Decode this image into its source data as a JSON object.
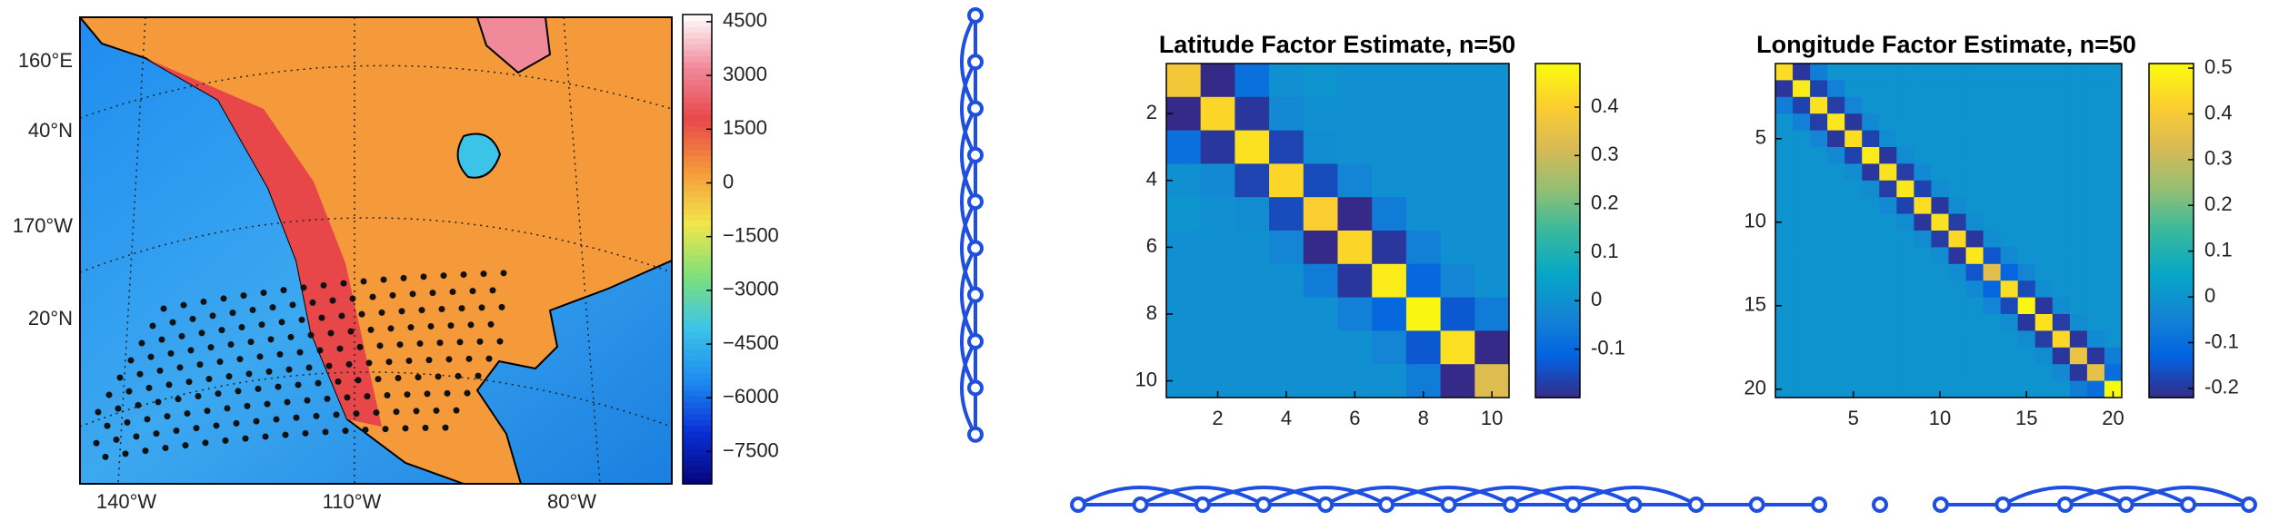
{
  "chart_data": [
    {
      "type": "map",
      "x_labels": [
        "140°W",
        "110°W",
        "80°W"
      ],
      "y_labels": [
        "160°E",
        "40°N",
        "170°W",
        "20°N"
      ],
      "clim": [
        -8400,
        4700
      ],
      "cticks": [
        4500,
        3000,
        1500,
        0,
        {
          "value": -1500,
          "label": "−1500"
        },
        {
          "value": -3000,
          "label": "−3000"
        },
        {
          "value": -4500,
          "label": "−4500"
        },
        {
          "value": -6000,
          "label": "−6000"
        },
        {
          "value": -7500,
          "label": "−7500"
        }
      ],
      "colormap": [
        "#05057a",
        "#0a2fd6",
        "#1f8cf0",
        "#3cc4e8",
        "#7ee07a",
        "#f2e64a",
        "#f59a3a",
        "#e8474a",
        "#f08a9a",
        "#ffffff"
      ]
    },
    {
      "type": "heatmap",
      "title": "Latitude Factor Estimate, n=50",
      "xlim": [
        0.5,
        10.5
      ],
      "ylim": [
        0.5,
        10.5
      ],
      "y_reversed": true,
      "xticks": [
        2,
        4,
        6,
        8,
        10
      ],
      "yticks": [
        2,
        4,
        6,
        8,
        10
      ],
      "clim": [
        -0.2,
        0.49
      ],
      "cticks": [
        0.4,
        0.3,
        0.2,
        0.1,
        0,
        -0.1
      ],
      "colormap": [
        "#352a87",
        "#0363e1",
        "#1485d4",
        "#06a7c6",
        "#38b99e",
        "#92bf73",
        "#d9ba56",
        "#fcce2e",
        "#f9fb0e"
      ],
      "values": [
        [
          0.38,
          -0.2,
          -0.08,
          0,
          0.01,
          0,
          0,
          0,
          0,
          0
        ],
        [
          -0.2,
          0.42,
          -0.18,
          -0.02,
          0,
          0,
          0,
          0,
          0,
          0
        ],
        [
          -0.08,
          -0.18,
          0.44,
          -0.16,
          -0.01,
          0,
          0,
          0,
          0,
          0
        ],
        [
          0,
          -0.02,
          -0.16,
          0.42,
          -0.15,
          -0.03,
          0,
          0,
          0,
          0
        ],
        [
          0.01,
          0,
          -0.01,
          -0.15,
          0.4,
          -0.2,
          -0.05,
          0,
          0,
          0
        ],
        [
          0,
          0,
          0,
          -0.03,
          -0.2,
          0.42,
          -0.18,
          -0.04,
          0,
          0
        ],
        [
          0,
          0,
          0,
          0,
          -0.05,
          -0.18,
          0.46,
          -0.1,
          -0.03,
          0
        ],
        [
          0,
          0,
          0,
          0,
          0,
          -0.04,
          -0.1,
          0.48,
          -0.13,
          -0.05
        ],
        [
          0,
          0,
          0,
          0,
          0,
          0,
          -0.03,
          -0.13,
          0.44,
          -0.2
        ],
        [
          0,
          0,
          0,
          0,
          0,
          0,
          0,
          -0.05,
          -0.2,
          0.33
        ]
      ]
    },
    {
      "type": "heatmap",
      "title": "Longitude Factor Estimate, n=50",
      "xlim": [
        0.5,
        20.5
      ],
      "ylim": [
        0.5,
        20.5
      ],
      "y_reversed": true,
      "xticks": [
        5,
        10,
        15,
        20
      ],
      "yticks": [
        5,
        10,
        15,
        20
      ],
      "clim": [
        -0.22,
        0.51
      ],
      "cticks": [
        0.5,
        0.4,
        0.3,
        0.2,
        0.1,
        0,
        -0.1,
        -0.2
      ],
      "colormap": [
        "#352a87",
        "#0363e1",
        "#1485d4",
        "#06a7c6",
        "#38b99e",
        "#92bf73",
        "#d9ba56",
        "#fcce2e",
        "#f9fb0e"
      ],
      "values": [
        [
          0.45,
          -0.2,
          -0.06,
          0,
          0,
          0,
          0,
          0,
          0,
          0,
          0,
          0,
          0,
          0,
          0,
          0,
          0,
          0,
          0,
          0
        ],
        [
          -0.2,
          0.48,
          -0.18,
          -0.05,
          0,
          0,
          0,
          0,
          0,
          0,
          0,
          0,
          0,
          0,
          0,
          0,
          0,
          0,
          0,
          0
        ],
        [
          -0.06,
          -0.18,
          0.46,
          -0.19,
          -0.04,
          0,
          0,
          0,
          0,
          0,
          0,
          0,
          0,
          0,
          0,
          0,
          0,
          0,
          0,
          0
        ],
        [
          0,
          -0.05,
          -0.19,
          0.47,
          -0.2,
          -0.03,
          0,
          0,
          0,
          0,
          0,
          0,
          0,
          0,
          0,
          0,
          0,
          0,
          0,
          0
        ],
        [
          0,
          0,
          -0.04,
          -0.2,
          0.45,
          -0.18,
          -0.02,
          0,
          0,
          0,
          0,
          0,
          0,
          0,
          0,
          0,
          0,
          0,
          0,
          0
        ],
        [
          0,
          0,
          0,
          -0.03,
          -0.18,
          0.48,
          -0.2,
          -0.02,
          0,
          0,
          0,
          0,
          0,
          0,
          0,
          0,
          0,
          0,
          0,
          0
        ],
        [
          0,
          0,
          0,
          0,
          -0.02,
          -0.2,
          0.46,
          -0.19,
          -0.03,
          0,
          0,
          0,
          0,
          0,
          0,
          0,
          0,
          0,
          0,
          0
        ],
        [
          0,
          0,
          0,
          0,
          0,
          -0.02,
          -0.19,
          0.47,
          -0.18,
          -0.02,
          0,
          0,
          0,
          0,
          0,
          0,
          0,
          0,
          0,
          0
        ],
        [
          0,
          0,
          0,
          0,
          0,
          0,
          -0.03,
          -0.18,
          0.45,
          -0.2,
          -0.02,
          0,
          0,
          0,
          0,
          0,
          0,
          0,
          0,
          0
        ],
        [
          0,
          0,
          0,
          0,
          0,
          0,
          0,
          -0.02,
          -0.2,
          0.46,
          -0.19,
          -0.02,
          0,
          0,
          0,
          0,
          0,
          0,
          0,
          0
        ],
        [
          0,
          0,
          0,
          0,
          0,
          0,
          0,
          0,
          -0.02,
          -0.19,
          0.44,
          -0.2,
          -0.02,
          0,
          0,
          0,
          0,
          0,
          0,
          0
        ],
        [
          0,
          0,
          0,
          0,
          0,
          0,
          0,
          0,
          0,
          -0.02,
          -0.2,
          0.47,
          -0.15,
          -0.03,
          0,
          0,
          0,
          0,
          0,
          0
        ],
        [
          0,
          0,
          0,
          0,
          0,
          0,
          0,
          0,
          0,
          0,
          -0.02,
          -0.15,
          0.35,
          -0.12,
          -0.04,
          0,
          0,
          0,
          0,
          0
        ],
        [
          0,
          0,
          0,
          0,
          0,
          0,
          0,
          0,
          0,
          0,
          0,
          -0.03,
          -0.12,
          0.45,
          -0.17,
          -0.02,
          0,
          0,
          0,
          0
        ],
        [
          0,
          0,
          0,
          0,
          0,
          0,
          0,
          0,
          0,
          0,
          0,
          0,
          -0.04,
          -0.17,
          0.5,
          -0.2,
          -0.02,
          0,
          0,
          0
        ],
        [
          0,
          0,
          0,
          0,
          0,
          0,
          0,
          0,
          0,
          0,
          0,
          0,
          0,
          -0.02,
          -0.2,
          0.46,
          -0.19,
          -0.02,
          0,
          0
        ],
        [
          0,
          0,
          0,
          0,
          0,
          0,
          0,
          0,
          0,
          0,
          0,
          0,
          0,
          0,
          -0.02,
          -0.19,
          0.44,
          -0.2,
          -0.03,
          0
        ],
        [
          0,
          0,
          0,
          0,
          0,
          0,
          0,
          0,
          0,
          0,
          0,
          0,
          0,
          0,
          0,
          -0.02,
          -0.2,
          0.37,
          -0.2,
          -0.06
        ],
        [
          0,
          0,
          0,
          0,
          0,
          0,
          0,
          0,
          0,
          0,
          0,
          0,
          0,
          0,
          0,
          0,
          -0.03,
          -0.2,
          0.36,
          -0.1
        ],
        [
          0,
          0,
          0,
          0,
          0,
          0,
          0,
          0,
          0,
          0,
          0,
          0,
          0,
          0,
          0,
          0,
          0,
          -0.06,
          -0.1,
          0.52
        ]
      ]
    }
  ]
}
